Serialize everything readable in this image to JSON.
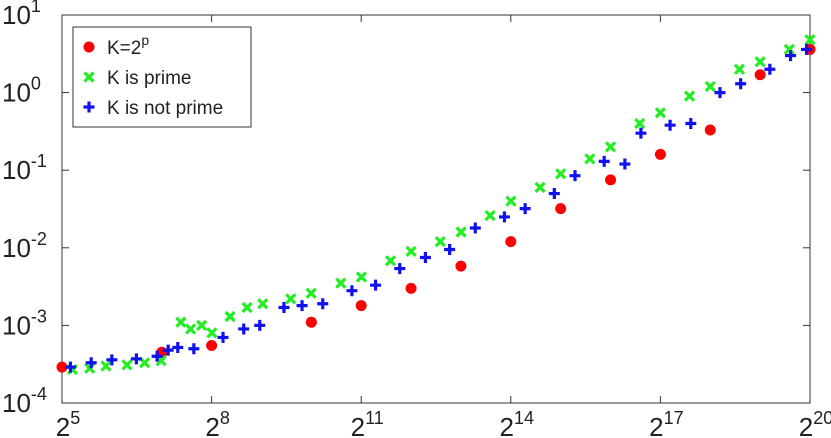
{
  "chart_data": {
    "type": "scatter",
    "xscale": "log2",
    "yscale": "log10",
    "xlim": [
      32,
      1048576
    ],
    "ylim": [
      0.0001,
      10
    ],
    "xticks": [
      {
        "value": 32,
        "base": "2",
        "power": "5"
      },
      {
        "value": 256,
        "base": "2",
        "power": "8"
      },
      {
        "value": 2048,
        "base": "2",
        "power": "11"
      },
      {
        "value": 16384,
        "base": "2",
        "power": "14"
      },
      {
        "value": 131072,
        "base": "2",
        "power": "17"
      },
      {
        "value": 1048576,
        "base": "2",
        "power": "20"
      }
    ],
    "yticks": [
      {
        "value": 0.0001,
        "base": "10",
        "power": "-4"
      },
      {
        "value": 0.001,
        "base": "10",
        "power": "-3"
      },
      {
        "value": 0.01,
        "base": "10",
        "power": "-2"
      },
      {
        "value": 0.1,
        "base": "10",
        "power": "-1"
      },
      {
        "value": 1,
        "base": "10",
        "power": "0"
      },
      {
        "value": 10,
        "base": "10",
        "power": "1"
      }
    ],
    "legend": "upper-left",
    "series": [
      {
        "name": "K=2",
        "name_power": "p",
        "color": "#ff0000",
        "marker": "circle",
        "x": [
          32,
          128,
          256,
          1024,
          2048,
          4096,
          8192,
          16384,
          32768,
          65536,
          131072,
          262144,
          524288,
          1048576
        ],
        "values": [
          0.00029,
          0.00045,
          0.00055,
          0.0011,
          0.0018,
          0.003,
          0.0058,
          0.012,
          0.032,
          0.075,
          0.16,
          0.33,
          1.7,
          3.6
        ]
      },
      {
        "name": "K is prime",
        "color": "#22ee22",
        "marker": "x",
        "x": [
          37,
          47,
          59,
          79,
          101,
          127,
          167,
          191,
          223,
          257,
          331,
          419,
          521,
          769,
          1021,
          1543,
          2053,
          3079,
          4099,
          6151,
          8209,
          12289,
          16411,
          24593,
          32771,
          49157,
          65537,
          98317,
          131071,
          196613,
          262147,
          393241,
          524287,
          786433,
          1048573
        ],
        "values": [
          0.00027,
          0.00028,
          0.0003,
          0.00031,
          0.00033,
          0.00035,
          0.0011,
          0.0009,
          0.001,
          0.0008,
          0.0013,
          0.0017,
          0.0019,
          0.0022,
          0.0026,
          0.0035,
          0.0042,
          0.0068,
          0.009,
          0.012,
          0.016,
          0.026,
          0.04,
          0.06,
          0.09,
          0.14,
          0.2,
          0.4,
          0.55,
          0.9,
          1.2,
          2.0,
          2.5,
          3.6,
          4.8
        ]
      },
      {
        "name": "K is not prime",
        "color": "#1111ee",
        "marker": "plus",
        "x": [
          36,
          48,
          64,
          90,
          120,
          140,
          160,
          200,
          300,
          400,
          500,
          700,
          900,
          1200,
          1800,
          2500,
          3500,
          5000,
          7000,
          10000,
          15000,
          20000,
          30000,
          40000,
          60000,
          80000,
          100000,
          150000,
          200000,
          300000,
          400000,
          600000,
          800000,
          1000000
        ],
        "values": [
          0.00029,
          0.00033,
          0.00036,
          0.00037,
          0.0004,
          0.00048,
          0.00052,
          0.0005,
          0.0007,
          0.0009,
          0.001,
          0.0017,
          0.0018,
          0.0019,
          0.0028,
          0.0033,
          0.0054,
          0.0075,
          0.0095,
          0.018,
          0.025,
          0.032,
          0.05,
          0.085,
          0.13,
          0.12,
          0.3,
          0.38,
          0.4,
          1.0,
          1.3,
          2.0,
          3.0,
          3.6
        ]
      }
    ]
  }
}
